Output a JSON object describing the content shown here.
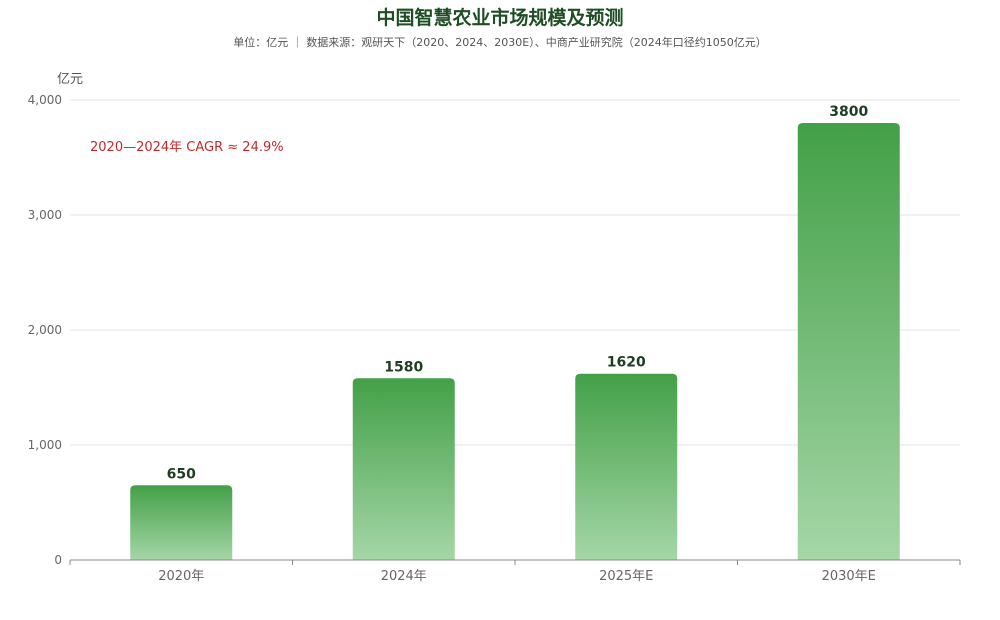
{
  "chart_data": {
    "type": "bar",
    "title": "中国智慧农业市场规模及预测",
    "subtitle": "单位：亿元 ｜ 数据来源：观研天下（2020、2024、2030E）、中商产业研究院（2024年口径约1050亿元）",
    "ylabel": "亿元",
    "xlabel": "",
    "categories": [
      "2020年",
      "2024年",
      "2025年E",
      "2030年E"
    ],
    "values": [
      650,
      1580,
      1620,
      3800
    ],
    "ylim": [
      0,
      4000
    ],
    "yticks": [
      0,
      1000,
      2000,
      3000,
      4000
    ],
    "ytick_labels": [
      "0",
      "1,000",
      "2,000",
      "3,000",
      "4,000"
    ],
    "data_labels": [
      "650",
      "1580",
      "1620",
      "3800"
    ],
    "annotation": "2020—2024年 CAGR ≈ 24.9%",
    "grid": true,
    "colors": {
      "bar_top": "#43a047",
      "bar_bottom": "#a5d6a7",
      "title": "#1f4d24",
      "annotation": "#c62828",
      "data_label": "#1f3d22",
      "axis": "#666666",
      "grid": "#e6e6e6"
    }
  }
}
